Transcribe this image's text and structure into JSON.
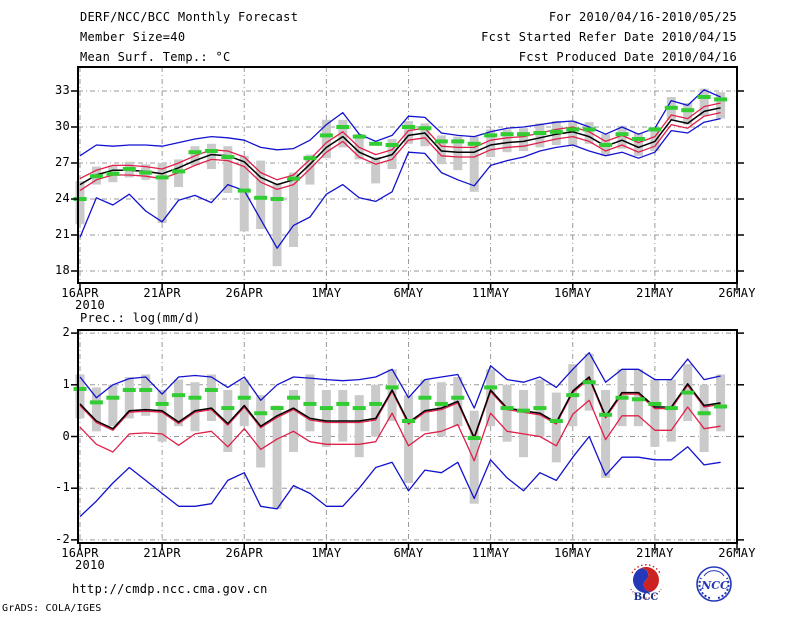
{
  "header": {
    "title": "DERF/NCC/BCC Monthly Forecast",
    "subtitle": "Member Size=40",
    "for_range": "For 2010/04/16-2010/05/25",
    "refer_date": "Fcst Started Refer Date 2010/04/15",
    "produced_date": "Fcst Produced Date 2010/04/16"
  },
  "footer": {
    "url": "http://cmdp.ncc.cma.gov.cn",
    "credit": "GrADS: COLA/IGES",
    "logos": [
      {
        "label": "BCC"
      },
      {
        "label": "NCC"
      }
    ]
  },
  "colors": {
    "line_blue": "#1212cf",
    "line_red": "#e0204a",
    "line_black": "#000000",
    "obs_green": "#32cd32",
    "spread_gray": "#cacaca",
    "grid_gray": "#9a9a9a",
    "frame_black": "#000000",
    "bcc_navy": "#1a2f8a",
    "logo_red": "#cc2222",
    "ncc_blue": "#2438b8"
  },
  "chart_data": [
    {
      "type": "line",
      "title": "Mean Surf. Temp.: °C",
      "ylabel": "°C",
      "x_tick_labels": [
        "16APR",
        "21APR",
        "26APR",
        "1MAY",
        "6MAY",
        "11MAY",
        "16MAY",
        "21MAY",
        "26MAY"
      ],
      "x_first_tick_year": "2010",
      "y_ticks": [
        18,
        21,
        24,
        27,
        30,
        33
      ],
      "ylim": [
        17,
        35
      ],
      "grid": true,
      "x_dates": [
        "16APR",
        "17APR",
        "18APR",
        "19APR",
        "20APR",
        "21APR",
        "22APR",
        "23APR",
        "24APR",
        "25APR",
        "26APR",
        "27APR",
        "28APR",
        "29APR",
        "30APR",
        "1MAY",
        "2MAY",
        "3MAY",
        "4MAY",
        "5MAY",
        "6MAY",
        "7MAY",
        "8MAY",
        "9MAY",
        "10MAY",
        "11MAY",
        "12MAY",
        "13MAY",
        "14MAY",
        "15MAY",
        "16MAY",
        "17MAY",
        "18MAY",
        "19MAY",
        "20MAY",
        "21MAY",
        "22MAY",
        "23MAY",
        "24MAY",
        "25MAY"
      ],
      "series": [
        {
          "name": "ensemble-max",
          "color": "#1212cf",
          "width": 1.3,
          "values": [
            27.6,
            28.5,
            28.4,
            28.5,
            28.5,
            28.4,
            28.7,
            29.0,
            29.2,
            29.1,
            28.9,
            28.3,
            28.1,
            28.2,
            28.9,
            30.2,
            31.2,
            29.4,
            28.8,
            29.3,
            30.9,
            30.8,
            29.5,
            29.3,
            29.2,
            29.6,
            29.9,
            30.0,
            30.2,
            30.4,
            30.5,
            30.0,
            29.4,
            30.0,
            29.4,
            29.9,
            32.2,
            31.8,
            33.1,
            32.5
          ]
        },
        {
          "name": "ensemble-min",
          "color": "#1212cf",
          "width": 1.3,
          "values": [
            20.8,
            24.1,
            23.5,
            24.4,
            23.0,
            22.1,
            23.9,
            24.3,
            23.7,
            25.2,
            24.7,
            22.3,
            19.9,
            21.8,
            22.5,
            24.4,
            25.2,
            24.1,
            23.8,
            24.6,
            27.9,
            27.8,
            26.2,
            25.6,
            25.1,
            26.8,
            27.2,
            27.5,
            28.0,
            28.3,
            28.5,
            28.0,
            27.6,
            27.9,
            27.4,
            27.9,
            29.7,
            29.5,
            30.4,
            30.7
          ]
        },
        {
          "name": "upper-band",
          "color": "#e0204a",
          "width": 1.3,
          "values": [
            25.7,
            26.4,
            26.8,
            26.8,
            26.7,
            26.5,
            27.0,
            27.6,
            28.1,
            28.0,
            27.5,
            26.2,
            25.6,
            26.0,
            27.3,
            28.7,
            29.6,
            28.3,
            27.7,
            28.1,
            29.7,
            29.9,
            28.4,
            28.3,
            28.3,
            28.9,
            29.1,
            29.2,
            29.5,
            29.8,
            30.0,
            29.6,
            28.8,
            29.3,
            28.7,
            29.2,
            31.0,
            30.7,
            31.7,
            32.0
          ]
        },
        {
          "name": "lower-band",
          "color": "#e0204a",
          "width": 1.3,
          "values": [
            24.7,
            25.6,
            26.0,
            26.0,
            25.9,
            25.7,
            26.2,
            26.8,
            27.3,
            27.2,
            26.7,
            25.4,
            24.8,
            25.2,
            26.5,
            27.9,
            28.8,
            27.5,
            26.9,
            27.3,
            28.9,
            29.1,
            27.6,
            27.5,
            27.5,
            28.1,
            28.3,
            28.4,
            28.7,
            29.0,
            29.2,
            28.8,
            28.0,
            28.5,
            27.9,
            28.4,
            30.2,
            29.9,
            30.9,
            31.2
          ]
        },
        {
          "name": "ensemble-mean",
          "color": "#000000",
          "width": 1.5,
          "values": [
            25.2,
            26.0,
            26.4,
            26.4,
            26.3,
            26.1,
            26.6,
            27.2,
            27.7,
            27.6,
            27.1,
            25.8,
            25.2,
            25.6,
            26.9,
            28.3,
            29.2,
            27.9,
            27.3,
            27.7,
            29.3,
            29.5,
            28.0,
            27.9,
            27.9,
            28.5,
            28.7,
            28.8,
            29.1,
            29.4,
            29.6,
            29.2,
            28.4,
            28.9,
            28.3,
            28.8,
            30.6,
            30.3,
            31.3,
            31.6
          ]
        }
      ],
      "spread_bars": {
        "name": "member-spread-bar",
        "color": "#cacaca",
        "ranges": [
          [
            21.9,
            25.5
          ],
          [
            25.2,
            26.7
          ],
          [
            25.4,
            26.8
          ],
          [
            25.8,
            27.1
          ],
          [
            25.6,
            26.9
          ],
          [
            22.0,
            27.0
          ],
          [
            25.0,
            27.3
          ],
          [
            26.8,
            28.4
          ],
          [
            26.5,
            28.6
          ],
          [
            24.5,
            28.4
          ],
          [
            21.3,
            27.6
          ],
          [
            21.5,
            27.2
          ],
          [
            18.4,
            25.3
          ],
          [
            20.0,
            26.2
          ],
          [
            25.2,
            27.7
          ],
          [
            27.4,
            30.6
          ],
          [
            28.3,
            30.6
          ],
          [
            27.3,
            29.4
          ],
          [
            25.3,
            27.5
          ],
          [
            26.5,
            29.0
          ],
          [
            28.6,
            30.5
          ],
          [
            28.4,
            30.3
          ],
          [
            26.9,
            29.3
          ],
          [
            26.4,
            29.2
          ],
          [
            24.6,
            29.2
          ],
          [
            27.5,
            29.8
          ],
          [
            27.9,
            29.8
          ],
          [
            28.0,
            29.9
          ],
          [
            28.3,
            30.3
          ],
          [
            28.5,
            30.5
          ],
          [
            28.4,
            30.5
          ],
          [
            28.6,
            30.4
          ],
          [
            27.6,
            29.4
          ],
          [
            28.2,
            30.1
          ],
          [
            27.6,
            29.5
          ],
          [
            28.0,
            30.0
          ],
          [
            30.6,
            32.5
          ],
          [
            30.2,
            32.0
          ],
          [
            30.9,
            33.2
          ],
          [
            30.7,
            32.9
          ]
        ]
      },
      "obs_dashes": {
        "name": "daily-green-marker",
        "color": "#32cd32",
        "values": [
          24.0,
          25.9,
          26.1,
          26.5,
          26.2,
          25.8,
          26.3,
          27.9,
          28.0,
          27.5,
          24.7,
          24.1,
          24.0,
          25.7,
          27.4,
          29.3,
          30.0,
          29.2,
          28.6,
          28.5,
          30.0,
          29.9,
          28.8,
          28.8,
          28.6,
          29.3,
          29.4,
          29.4,
          29.5,
          29.6,
          29.8,
          29.8,
          28.5,
          29.4,
          29.0,
          29.8,
          31.6,
          31.4,
          32.5,
          32.3
        ]
      }
    },
    {
      "type": "line",
      "title": "Prec.: log(mm/d)",
      "ylabel": "log(mm/d)",
      "x_tick_labels": [
        "16APR",
        "21APR",
        "26APR",
        "1MAY",
        "6MAY",
        "11MAY",
        "16MAY",
        "21MAY",
        "26MAY"
      ],
      "x_first_tick_year": "2010",
      "y_ticks": [
        -2,
        -1,
        0,
        1,
        2
      ],
      "ylim": [
        -2.06,
        2.06
      ],
      "grid": true,
      "x_dates": [
        "16APR",
        "17APR",
        "18APR",
        "19APR",
        "20APR",
        "21APR",
        "22APR",
        "23APR",
        "24APR",
        "25APR",
        "26APR",
        "27APR",
        "28APR",
        "29APR",
        "30APR",
        "1MAY",
        "2MAY",
        "3MAY",
        "4MAY",
        "5MAY",
        "6MAY",
        "7MAY",
        "8MAY",
        "9MAY",
        "10MAY",
        "11MAY",
        "12MAY",
        "13MAY",
        "14MAY",
        "15MAY",
        "16MAY",
        "17MAY",
        "18MAY",
        "19MAY",
        "20MAY",
        "21MAY",
        "22MAY",
        "23MAY",
        "24MAY",
        "25MAY"
      ],
      "series": [
        {
          "name": "ensemble-max",
          "color": "#1212cf",
          "width": 1.3,
          "values": [
            1.15,
            0.75,
            1.0,
            1.12,
            1.15,
            0.82,
            1.15,
            1.18,
            1.15,
            0.95,
            1.15,
            0.7,
            1.0,
            1.15,
            1.13,
            1.1,
            1.08,
            1.1,
            1.15,
            1.3,
            0.75,
            1.1,
            1.15,
            1.2,
            0.55,
            1.37,
            1.1,
            1.05,
            1.15,
            0.95,
            1.3,
            1.62,
            1.05,
            1.3,
            1.3,
            1.1,
            1.1,
            1.5,
            1.1,
            1.17
          ]
        },
        {
          "name": "ensemble-min",
          "color": "#1212cf",
          "width": 1.3,
          "values": [
            -1.55,
            -1.25,
            -0.9,
            -0.6,
            -0.85,
            -1.1,
            -1.35,
            -1.35,
            -1.3,
            -0.85,
            -0.7,
            -1.35,
            -1.4,
            -0.95,
            -1.1,
            -1.35,
            -1.35,
            -1.0,
            -0.6,
            -0.5,
            -1.05,
            -0.65,
            -0.7,
            -0.5,
            -1.2,
            -0.45,
            -0.8,
            -1.05,
            -0.7,
            -0.85,
            -0.4,
            0.0,
            -0.75,
            -0.4,
            -0.4,
            -0.45,
            -0.45,
            -0.2,
            -0.55,
            -0.5
          ]
        },
        {
          "name": "upper-band",
          "color": "#e0204a",
          "width": 1.3,
          "values": [
            0.6,
            0.27,
            0.12,
            0.47,
            0.49,
            0.47,
            0.25,
            0.47,
            0.52,
            0.22,
            0.57,
            0.17,
            0.37,
            0.52,
            0.32,
            0.27,
            0.27,
            0.27,
            0.32,
            0.87,
            0.24,
            0.47,
            0.52,
            0.65,
            -0.05,
            0.87,
            0.52,
            0.47,
            0.42,
            0.24,
            0.85,
            1.12,
            0.36,
            0.82,
            0.82,
            0.54,
            0.54,
            0.99,
            0.57,
            0.62
          ]
        },
        {
          "name": "lower-band",
          "color": "#e0204a",
          "width": 1.3,
          "values": [
            0.18,
            -0.15,
            -0.3,
            0.05,
            0.07,
            0.05,
            -0.17,
            0.05,
            0.1,
            -0.2,
            0.15,
            -0.25,
            -0.05,
            0.1,
            -0.1,
            -0.15,
            -0.15,
            -0.15,
            -0.1,
            0.45,
            -0.18,
            0.05,
            0.1,
            0.23,
            -0.47,
            0.45,
            0.1,
            0.05,
            0.0,
            -0.18,
            0.43,
            0.7,
            -0.06,
            0.4,
            0.4,
            0.12,
            0.12,
            0.57,
            0.15,
            0.2
          ]
        },
        {
          "name": "ensemble-mean",
          "color": "#000000",
          "width": 1.5,
          "values": [
            0.63,
            0.3,
            0.15,
            0.5,
            0.52,
            0.5,
            0.28,
            0.5,
            0.55,
            0.25,
            0.6,
            0.2,
            0.4,
            0.55,
            0.35,
            0.3,
            0.3,
            0.3,
            0.35,
            0.9,
            0.27,
            0.5,
            0.55,
            0.68,
            -0.02,
            0.9,
            0.55,
            0.5,
            0.45,
            0.27,
            0.88,
            1.15,
            0.39,
            0.85,
            0.85,
            0.57,
            0.57,
            1.02,
            0.6,
            0.65
          ]
        }
      ],
      "spread_bars": {
        "name": "member-spread-bar",
        "color": "#cacaca",
        "ranges": [
          [
            0.35,
            1.2
          ],
          [
            0.1,
            0.95
          ],
          [
            0.2,
            1.0
          ],
          [
            0.35,
            1.15
          ],
          [
            0.4,
            1.2
          ],
          [
            -0.1,
            0.9
          ],
          [
            0.2,
            1.1
          ],
          [
            0.1,
            1.05
          ],
          [
            0.3,
            1.2
          ],
          [
            -0.3,
            0.9
          ],
          [
            0.2,
            1.1
          ],
          [
            -0.6,
            0.8
          ],
          [
            -1.4,
            0.6
          ],
          [
            -0.3,
            0.9
          ],
          [
            0.1,
            1.2
          ],
          [
            -0.2,
            0.9
          ],
          [
            -0.1,
            0.9
          ],
          [
            -0.4,
            0.8
          ],
          [
            0.0,
            1.0
          ],
          [
            0.3,
            1.3
          ],
          [
            -0.9,
            0.8
          ],
          [
            0.1,
            1.1
          ],
          [
            0.0,
            1.05
          ],
          [
            0.2,
            1.15
          ],
          [
            -1.3,
            0.5
          ],
          [
            0.2,
            1.3
          ],
          [
            -0.1,
            1.0
          ],
          [
            -0.4,
            0.9
          ],
          [
            0.0,
            1.1
          ],
          [
            -0.5,
            0.85
          ],
          [
            0.2,
            1.4
          ],
          [
            0.5,
            1.6
          ],
          [
            -0.8,
            0.9
          ],
          [
            0.2,
            1.3
          ],
          [
            0.2,
            1.3
          ],
          [
            -0.2,
            1.1
          ],
          [
            -0.1,
            1.1
          ],
          [
            0.3,
            1.4
          ],
          [
            -0.3,
            1.0
          ],
          [
            0.1,
            1.2
          ]
        ]
      },
      "obs_dashes": {
        "name": "daily-green-marker",
        "color": "#32cd32",
        "values": [
          0.92,
          0.66,
          0.75,
          0.9,
          0.9,
          0.63,
          0.8,
          0.75,
          0.9,
          0.55,
          0.75,
          0.45,
          0.55,
          0.75,
          0.63,
          0.55,
          0.63,
          0.55,
          0.63,
          0.95,
          0.3,
          0.75,
          0.63,
          0.75,
          -0.03,
          0.95,
          0.55,
          0.5,
          0.55,
          0.3,
          0.8,
          1.05,
          0.42,
          0.75,
          0.72,
          0.63,
          0.55,
          0.85,
          0.45,
          0.58
        ]
      }
    }
  ]
}
